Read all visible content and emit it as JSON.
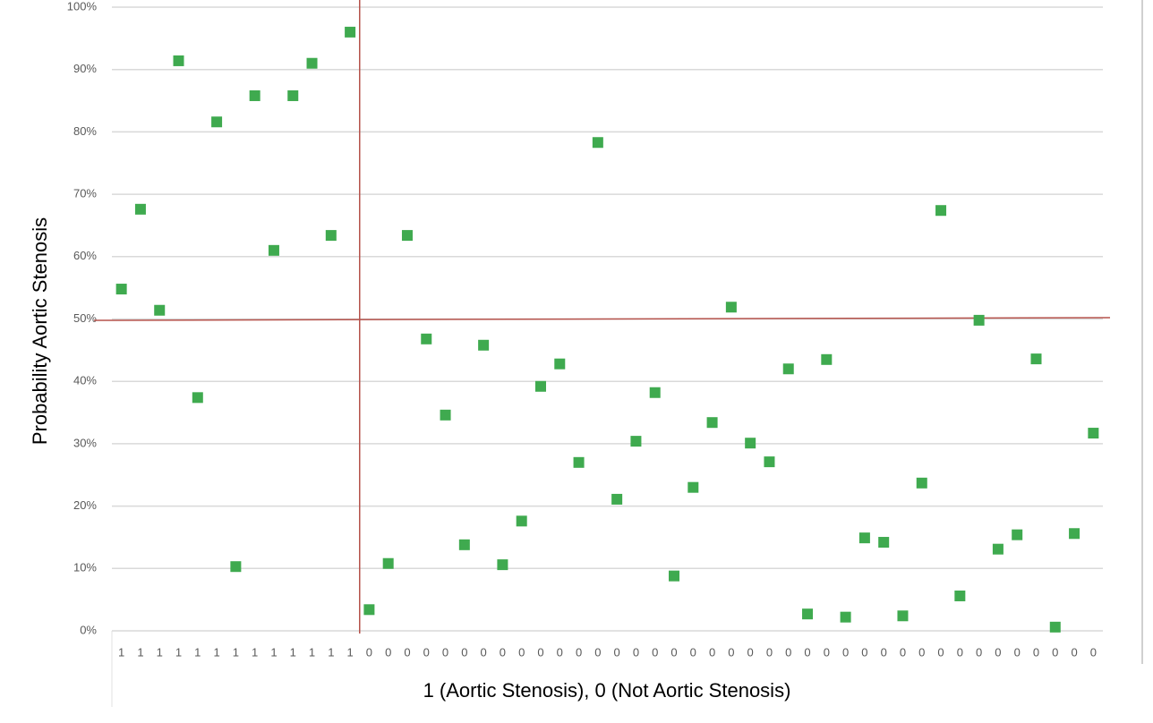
{
  "chart_data": {
    "type": "scatter",
    "x_label": "1 (Aortic Stenosis), 0 (Not Aortic Stenosis)",
    "y_label": "Probability Aortic Stenosis",
    "categories": [
      "1",
      "1",
      "1",
      "1",
      "1",
      "1",
      "1",
      "1",
      "1",
      "1",
      "1",
      "1",
      "1",
      "0",
      "0",
      "0",
      "0",
      "0",
      "0",
      "0",
      "0",
      "0",
      "0",
      "0",
      "0",
      "0",
      "0",
      "0",
      "0",
      "0",
      "0",
      "0",
      "0",
      "0",
      "0",
      "0",
      "0",
      "0",
      "0",
      "0",
      "0",
      "0",
      "0",
      "0",
      "0",
      "0",
      "0",
      "0",
      "0",
      "0",
      "0",
      "0"
    ],
    "series": [
      {
        "name": "Probability",
        "color": "#3faa4f",
        "values": [
          54.8,
          67.6,
          51.4,
          91.4,
          37.4,
          81.6,
          10.3,
          85.8,
          61.0,
          85.8,
          91.0,
          63.4,
          96.0,
          3.4,
          10.8,
          63.4,
          46.8,
          34.6,
          13.8,
          45.8,
          10.6,
          17.6,
          39.2,
          42.8,
          27.0,
          78.3,
          21.1,
          30.4,
          38.2,
          8.8,
          23.0,
          33.4,
          51.9,
          30.1,
          27.1,
          42.0,
          2.7,
          43.5,
          2.2,
          14.9,
          14.2,
          2.4,
          23.7,
          67.4,
          5.6,
          49.8,
          13.1,
          15.4,
          43.6,
          0.6,
          15.6,
          31.7
        ]
      }
    ],
    "ylim": [
      0,
      100
    ],
    "yticks": [
      {
        "value": 0,
        "label": "0%"
      },
      {
        "value": 10,
        "label": "10%"
      },
      {
        "value": 20,
        "label": "20%"
      },
      {
        "value": 30,
        "label": "30%"
      },
      {
        "value": 40,
        "label": "40%"
      },
      {
        "value": 50,
        "label": "50%"
      },
      {
        "value": 60,
        "label": "60%"
      },
      {
        "value": 70,
        "label": "70%"
      },
      {
        "value": 80,
        "label": "80%"
      },
      {
        "value": 90,
        "label": "90%"
      },
      {
        "value": 100,
        "label": "100%"
      }
    ],
    "reference_y": 50,
    "reference_color": "#b5524b",
    "grid": true
  }
}
